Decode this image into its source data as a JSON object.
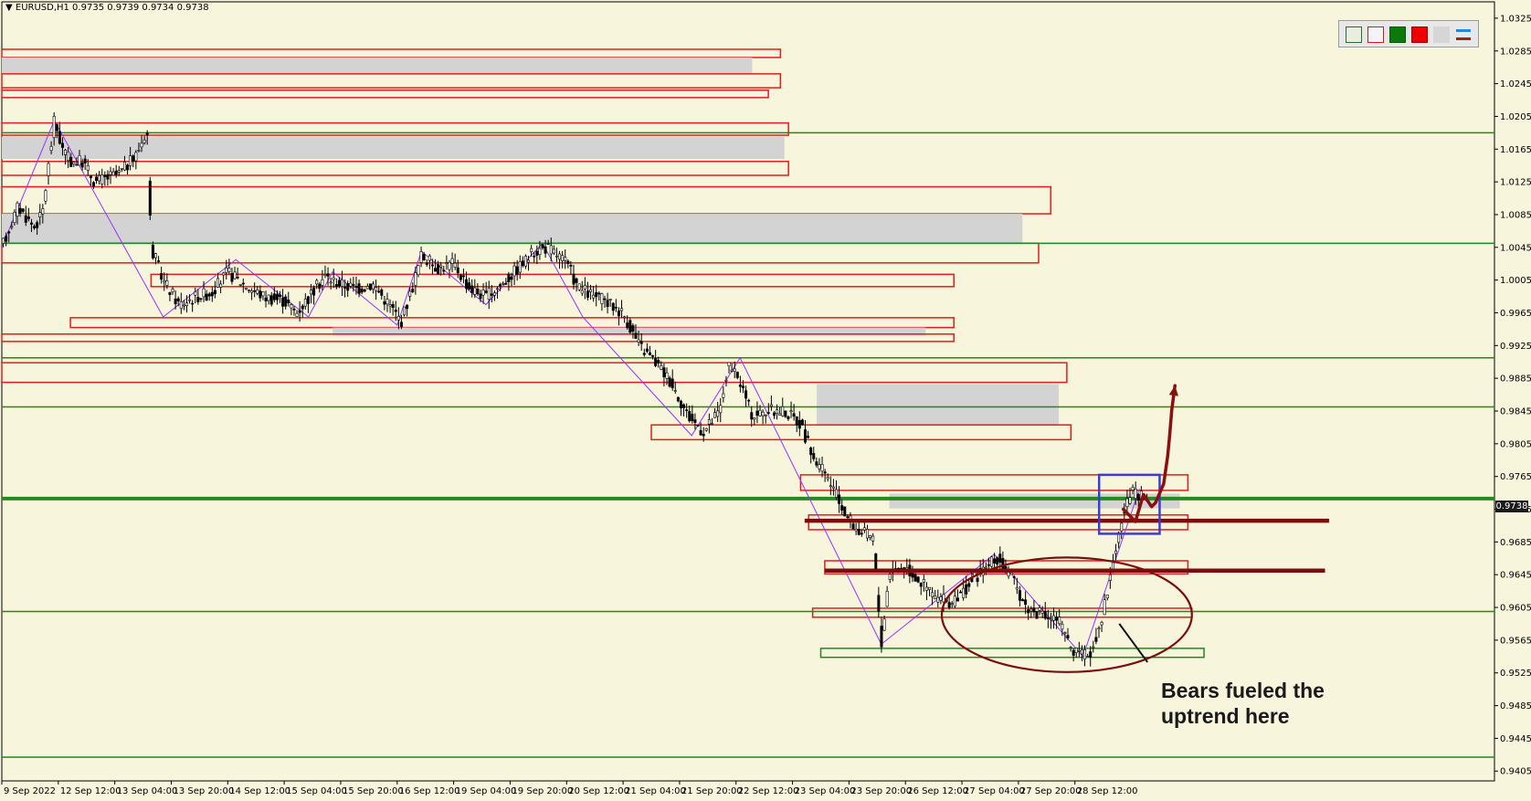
{
  "chart_data": {
    "type": "candlestick",
    "symbol_header": "▼ EURUSD,H1  0.9735 0.9739 0.9734 0.9738",
    "current_price": "0.9738",
    "y_axis": {
      "range": [
        0.9393,
        1.0345
      ],
      "ticks": [
        "1.0325",
        "1.0285",
        "1.0245",
        "1.0205",
        "1.0165",
        "1.0125",
        "1.0085",
        "1.0045",
        "1.0005",
        "0.9965",
        "0.9925",
        "0.9885",
        "0.9845",
        "0.9805",
        "0.9765",
        "0.9725",
        "0.9685",
        "0.9645",
        "0.9605",
        "0.9565",
        "0.9525",
        "0.9485",
        "0.9445",
        "0.9405"
      ]
    },
    "x_axis": {
      "range": [
        0,
        370
      ],
      "ticks": [
        {
          "label": "9 Sep 2022",
          "x": 0
        },
        {
          "label": "12 Sep 12:00",
          "x": 14
        },
        {
          "label": "13 Sep 04:00",
          "x": 28
        },
        {
          "label": "13 Sep 20:00",
          "x": 42
        },
        {
          "label": "14 Sep 12:00",
          "x": 56
        },
        {
          "label": "15 Sep 04:00",
          "x": 70
        },
        {
          "label": "15 Sep 20:00",
          "x": 84
        },
        {
          "label": "16 Sep 12:00",
          "x": 98
        },
        {
          "label": "19 Sep 04:00",
          "x": 112
        },
        {
          "label": "19 Sep 20:00",
          "x": 126
        },
        {
          "label": "20 Sep 12:00",
          "x": 140
        },
        {
          "label": "21 Sep 04:00",
          "x": 154
        },
        {
          "label": "21 Sep 20:00",
          "x": 168
        },
        {
          "label": "22 Sep 12:00",
          "x": 182
        },
        {
          "label": "23 Sep 04:00",
          "x": 196
        },
        {
          "label": "23 Sep 20:00",
          "x": 210
        },
        {
          "label": "26 Sep 12:00",
          "x": 224
        },
        {
          "label": "27 Sep 04:00",
          "x": 238
        },
        {
          "label": "27 Sep 20:00",
          "x": 252
        },
        {
          "label": "28 Sep 12:00",
          "x": 266
        }
      ]
    },
    "price_path": [
      [
        0,
        1.0045
      ],
      [
        4,
        1.0095
      ],
      [
        8,
        1.007
      ],
      [
        10,
        1.0085
      ],
      [
        13,
        1.02
      ],
      [
        15,
        1.0165
      ],
      [
        17,
        1.015
      ],
      [
        20,
        1.015
      ],
      [
        23,
        1.0125
      ],
      [
        26,
        1.013
      ],
      [
        29,
        1.0135
      ],
      [
        33,
        1.0155
      ],
      [
        36,
        1.019
      ],
      [
        37,
        1.0045
      ],
      [
        40,
        1.0005
      ],
      [
        44,
        0.9975
      ],
      [
        48,
        0.9985
      ],
      [
        52,
        0.999
      ],
      [
        56,
        1.0015
      ],
      [
        60,
        1.0
      ],
      [
        65,
        0.9985
      ],
      [
        70,
        0.998
      ],
      [
        73,
        0.9965
      ],
      [
        77,
        0.999
      ],
      [
        80,
        1.001
      ],
      [
        84,
        1.0
      ],
      [
        88,
        0.9995
      ],
      [
        92,
        1.0
      ],
      [
        96,
        0.9975
      ],
      [
        99,
        0.9955
      ],
      [
        102,
        1.0
      ],
      [
        104,
        1.0035
      ],
      [
        108,
        1.002
      ],
      [
        112,
        1.0025
      ],
      [
        116,
        0.9995
      ],
      [
        120,
        0.9985
      ],
      [
        124,
        1.0
      ],
      [
        128,
        1.002
      ],
      [
        132,
        1.004
      ],
      [
        135,
        1.0045
      ],
      [
        138,
        1.0035
      ],
      [
        140,
        1.0025
      ],
      [
        143,
        0.9995
      ],
      [
        147,
        0.9985
      ],
      [
        151,
        0.9975
      ],
      [
        154,
        0.9965
      ],
      [
        158,
        0.9925
      ],
      [
        162,
        0.9905
      ],
      [
        166,
        0.988
      ],
      [
        170,
        0.984
      ],
      [
        174,
        0.982
      ],
      [
        178,
        0.9845
      ],
      [
        180,
        0.99
      ],
      [
        183,
        0.988
      ],
      [
        186,
        0.984
      ],
      [
        190,
        0.9845
      ],
      [
        194,
        0.9845
      ],
      [
        198,
        0.983
      ],
      [
        201,
        0.979
      ],
      [
        205,
        0.976
      ],
      [
        209,
        0.972
      ],
      [
        212,
        0.97
      ],
      [
        216,
        0.969
      ],
      [
        218,
        0.956
      ],
      [
        220,
        0.965
      ],
      [
        224,
        0.9655
      ],
      [
        228,
        0.9635
      ],
      [
        232,
        0.9615
      ],
      [
        236,
        0.961
      ],
      [
        240,
        0.9635
      ],
      [
        244,
        0.9655
      ],
      [
        247,
        0.9665
      ],
      [
        251,
        0.9635
      ],
      [
        254,
        0.9605
      ],
      [
        258,
        0.9595
      ],
      [
        262,
        0.959
      ],
      [
        264,
        0.9565
      ],
      [
        267,
        0.9545
      ],
      [
        270,
        0.955
      ],
      [
        273,
        0.96
      ],
      [
        276,
        0.9675
      ],
      [
        278,
        0.972
      ],
      [
        280,
        0.9745
      ],
      [
        282,
        0.974
      ],
      [
        284,
        0.9738
      ]
    ],
    "zigzag": [
      [
        0,
        1.0045
      ],
      [
        13,
        1.02
      ],
      [
        40,
        0.996
      ],
      [
        58,
        1.003
      ],
      [
        76,
        0.996
      ],
      [
        82,
        1.0015
      ],
      [
        98,
        0.995
      ],
      [
        104,
        1.004
      ],
      [
        120,
        0.9975
      ],
      [
        134,
        1.005
      ],
      [
        144,
        0.996
      ],
      [
        171,
        0.9815
      ],
      [
        183,
        0.991
      ],
      [
        218,
        0.956
      ],
      [
        246,
        0.967
      ],
      [
        268,
        0.9545
      ],
      [
        282,
        0.975
      ]
    ],
    "zones": [
      {
        "x0": 0,
        "x1": 193,
        "y_top": 1.0287,
        "y_bot": 1.0277,
        "style": "red"
      },
      {
        "x0": 0,
        "x1": 186,
        "y_top": 1.0277,
        "y_bot": 1.0257,
        "style": "grey"
      },
      {
        "x0": 0,
        "x1": 193,
        "y_top": 1.0257,
        "y_bot": 1.024,
        "style": "red"
      },
      {
        "x0": 0,
        "x1": 190,
        "y_top": 1.0237,
        "y_bot": 1.0228,
        "style": "red"
      },
      {
        "x0": 0,
        "x1": 195,
        "y_top": 1.0197,
        "y_bot": 1.0182,
        "style": "red"
      },
      {
        "x0": 0,
        "x1": 194,
        "y_top": 1.018,
        "y_bot": 1.0153,
        "style": "grey"
      },
      {
        "x0": 0,
        "x1": 195,
        "y_top": 1.015,
        "y_bot": 1.0133,
        "style": "red"
      },
      {
        "x0": 0,
        "x1": 260,
        "y_top": 1.0119,
        "y_bot": 1.0086,
        "style": "red"
      },
      {
        "x0": 0,
        "x1": 253,
        "y_top": 1.0086,
        "y_bot": 1.005,
        "style": "grey"
      },
      {
        "x0": 0,
        "x1": 257,
        "y_top": 1.005,
        "y_bot": 1.0026,
        "style": "red"
      },
      {
        "x0": 37,
        "x1": 236,
        "y_top": 1.0012,
        "y_bot": 0.9997,
        "style": "red"
      },
      {
        "x0": 17,
        "x1": 236,
        "y_top": 0.9959,
        "y_bot": 0.9947,
        "style": "red"
      },
      {
        "x0": 82,
        "x1": 229,
        "y_top": 0.9947,
        "y_bot": 0.9937,
        "style": "grey"
      },
      {
        "x0": 0,
        "x1": 236,
        "y_top": 0.9939,
        "y_bot": 0.993,
        "style": "red"
      },
      {
        "x0": 0,
        "x1": 264,
        "y_top": 0.9904,
        "y_bot": 0.988,
        "style": "red"
      },
      {
        "x0": 202,
        "x1": 262,
        "y_top": 0.9878,
        "y_bot": 0.9828,
        "style": "grey"
      },
      {
        "x0": 161,
        "x1": 265,
        "y_top": 0.9828,
        "y_bot": 0.981,
        "style": "red"
      },
      {
        "x0": 198,
        "x1": 294,
        "y_top": 0.9767,
        "y_bot": 0.9748,
        "style": "red"
      },
      {
        "x0": 220,
        "x1": 292,
        "y_top": 0.9744,
        "y_bot": 0.9726,
        "style": "grey"
      },
      {
        "x0": 200,
        "x1": 294,
        "y_top": 0.9718,
        "y_bot": 0.97,
        "style": "red"
      },
      {
        "x0": 204,
        "x1": 294,
        "y_top": 0.9662,
        "y_bot": 0.9646,
        "style": "red"
      },
      {
        "x0": 201,
        "x1": 295,
        "y_top": 0.9604,
        "y_bot": 0.9593,
        "style": "red"
      },
      {
        "x0": 203,
        "x1": 298,
        "y_top": 0.9555,
        "y_bot": 0.9544,
        "style": "green"
      }
    ],
    "horizontal_lines": [
      {
        "price": 1.0185,
        "style": "green"
      },
      {
        "price": 1.005,
        "style": "green"
      },
      {
        "price": 0.991,
        "style": "green"
      },
      {
        "price": 0.985,
        "style": "green"
      },
      {
        "price": 0.9738,
        "style": "green-bold"
      },
      {
        "price": 0.96,
        "style": "green"
      },
      {
        "price": 0.9422,
        "style": "green"
      }
    ],
    "drawings": {
      "support_lines": [
        {
          "x0": 199,
          "x1": 329,
          "price": 0.9711
        },
        {
          "x0": 204,
          "x1": 328,
          "price": 0.965
        }
      ],
      "rectangle": {
        "x0": 272,
        "x1": 287,
        "y_top": 0.9767,
        "y_bot": 0.9695
      },
      "ellipse": {
        "cx": 264,
        "cy": 0.9596,
        "rx": 31,
        "ry": 0.007
      },
      "pointer_line": [
        [
          277,
          0.9585
        ],
        [
          284,
          0.9538
        ]
      ],
      "projection": [
        [
          278,
          0.9725
        ],
        [
          281,
          0.971
        ],
        [
          283,
          0.9743
        ],
        [
          285,
          0.9728
        ],
        [
          286,
          0.9733
        ],
        [
          288,
          0.9756
        ],
        [
          289,
          0.979
        ],
        [
          289.5,
          0.9816
        ],
        [
          290,
          0.9846
        ],
        [
          290.8,
          0.9876
        ]
      ]
    },
    "annotation": [
      "Bears fueled the",
      "uptrend here"
    ]
  }
}
